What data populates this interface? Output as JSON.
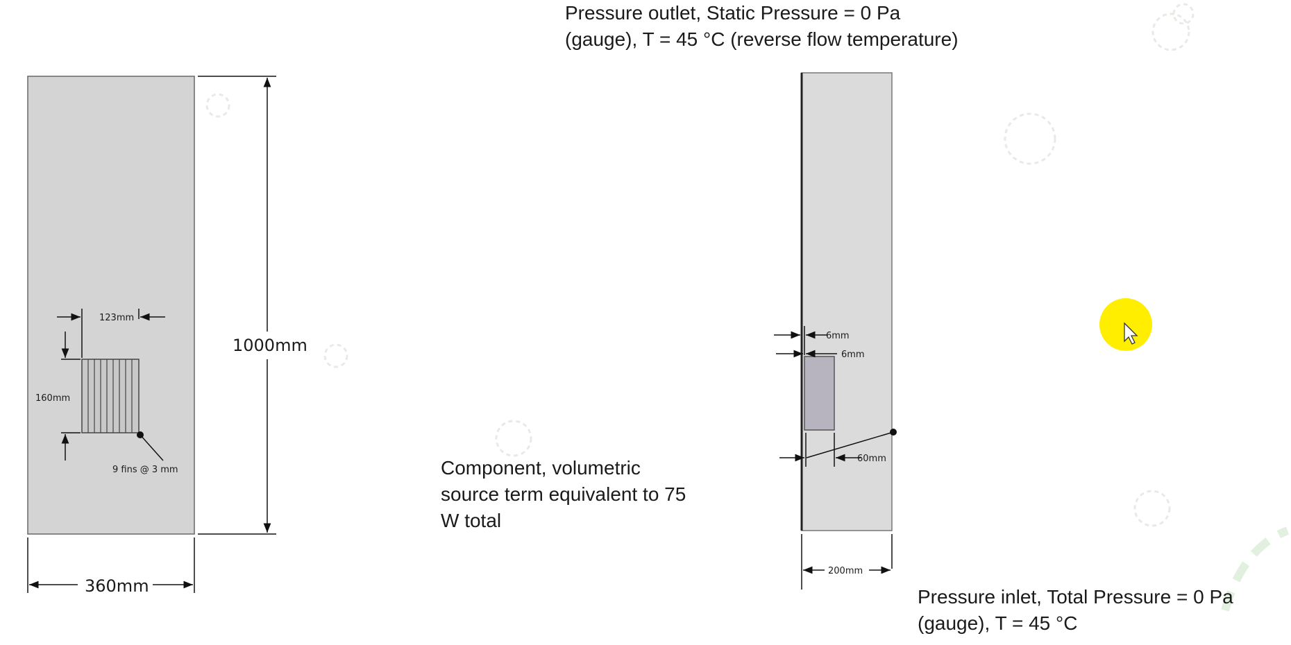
{
  "front_view": {
    "height_label": "1000mm",
    "width_label": "360mm",
    "component_width_label": "123mm",
    "component_height_label": "160mm",
    "fins_label": "9 fins @ 3 mm"
  },
  "side_view": {
    "gap_top_label": "6mm",
    "gap_side_label": "6mm",
    "component_depth_label": "60mm",
    "width_label": "200mm"
  },
  "notes": {
    "outlet": "Pressure outlet, Static Pressure = 0 Pa\n(gauge), T = 45 °C (reverse flow temperature)",
    "component": "Component,  volumetric\nsource term equivalent to 75\nW total",
    "inlet": "Pressure inlet, Total Pressure = 0 Pa\n(gauge), T = 45 °C"
  },
  "colors": {
    "domain_fill": "#d4d4d4",
    "side_fill": "#dcdbdc",
    "component_fill": "#b7b3bf",
    "cursor_highlight": "#ffee00",
    "deco_circle": "#e8ece6"
  }
}
